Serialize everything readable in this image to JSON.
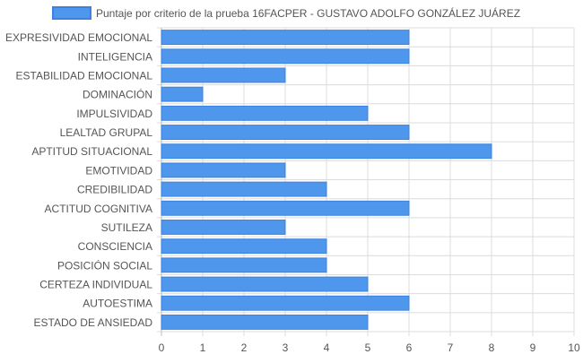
{
  "chart_data": {
    "type": "bar",
    "orientation": "horizontal",
    "categories": [
      "EXPRESIVIDAD EMOCIONAL",
      "INTELIGENCIA",
      "ESTABILIDAD EMOCIONAL",
      "DOMINACIÓN",
      "IMPULSIVIDAD",
      "LEALTAD GRUPAL",
      "APTITUD SITUACIONAL",
      "EMOTIVIDAD",
      "CREDIBILIDAD",
      "ACTITUD COGNITIVA",
      "SUTILEZA",
      "CONSCIENCIA",
      "POSICIÓN SOCIAL",
      "CERTEZA INDIVIDUAL",
      "AUTOESTIMA",
      "ESTADO DE ANSIEDAD"
    ],
    "series": [
      {
        "name": "Puntaje por criterio de la prueba 16FACPER - GUSTAVO ADOLFO GONZÁLEZ JUÁREZ",
        "values": [
          6,
          6,
          3,
          1,
          5,
          6,
          8,
          3,
          4,
          6,
          3,
          4,
          4,
          5,
          6,
          5
        ]
      }
    ],
    "xlim": [
      0,
      10
    ],
    "x_ticks": [
      "0",
      "1",
      "2",
      "3",
      "4",
      "5",
      "6",
      "7",
      "8",
      "9",
      "10"
    ],
    "grid": true,
    "legend_position": "top",
    "colors": {
      "bar_fill": "#4f97ec",
      "bar_stroke": "#3b82e0",
      "grid": "#dcdcdc",
      "axis": "#bdbdbd",
      "text": "#555555"
    }
  }
}
